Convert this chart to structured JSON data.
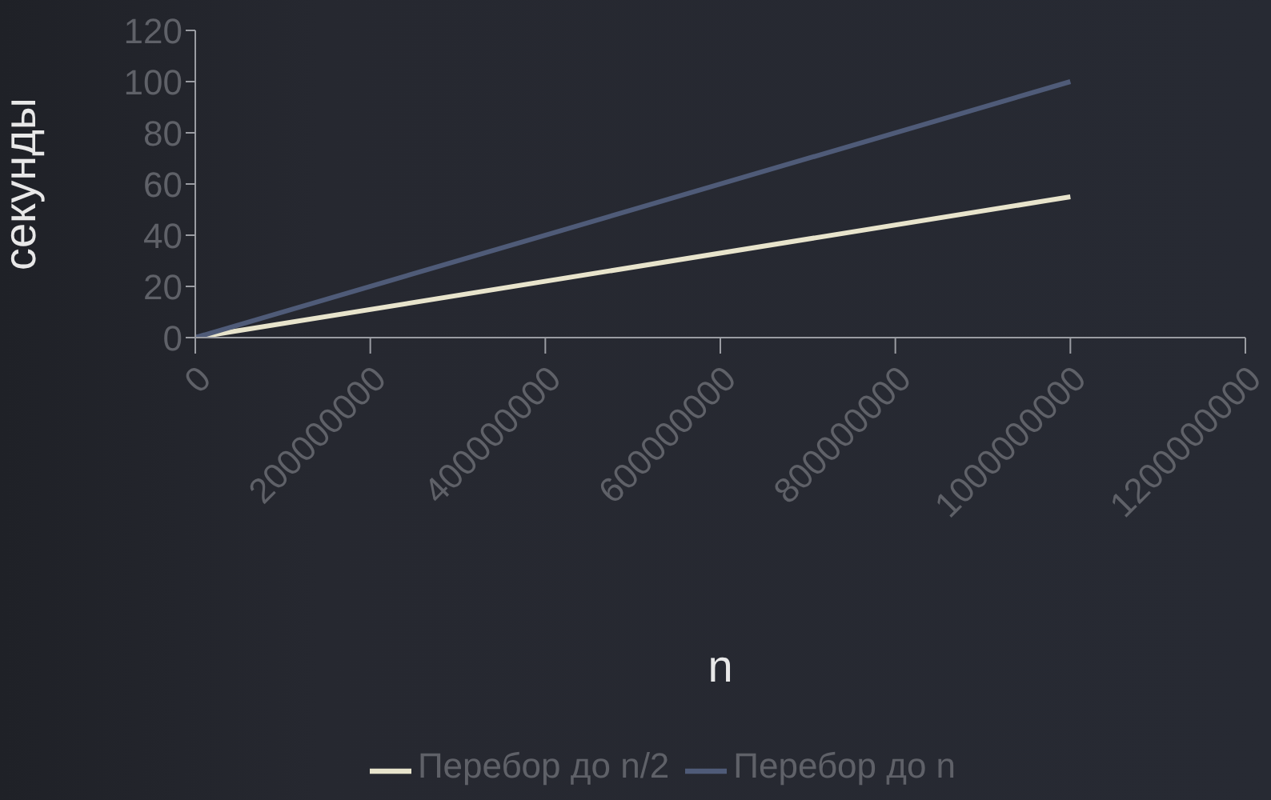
{
  "chart_data": {
    "type": "line",
    "xlabel": "n",
    "ylabel": "секунды",
    "x": [
      0,
      1000000000
    ],
    "series": [
      {
        "name": "Перебор до n/2",
        "color": "#e8e4cc",
        "values": [
          0,
          55
        ]
      },
      {
        "name": "Перебор до n",
        "color": "#4f5b78",
        "values": [
          0,
          100
        ]
      }
    ],
    "xlim": [
      0,
      1200000000
    ],
    "xticks": [
      0,
      200000000,
      400000000,
      600000000,
      800000000,
      1000000000,
      1200000000
    ],
    "ylim": [
      0,
      120
    ],
    "yticks": [
      0,
      20,
      40,
      60,
      80,
      100,
      120
    ],
    "legend": "bottom"
  }
}
